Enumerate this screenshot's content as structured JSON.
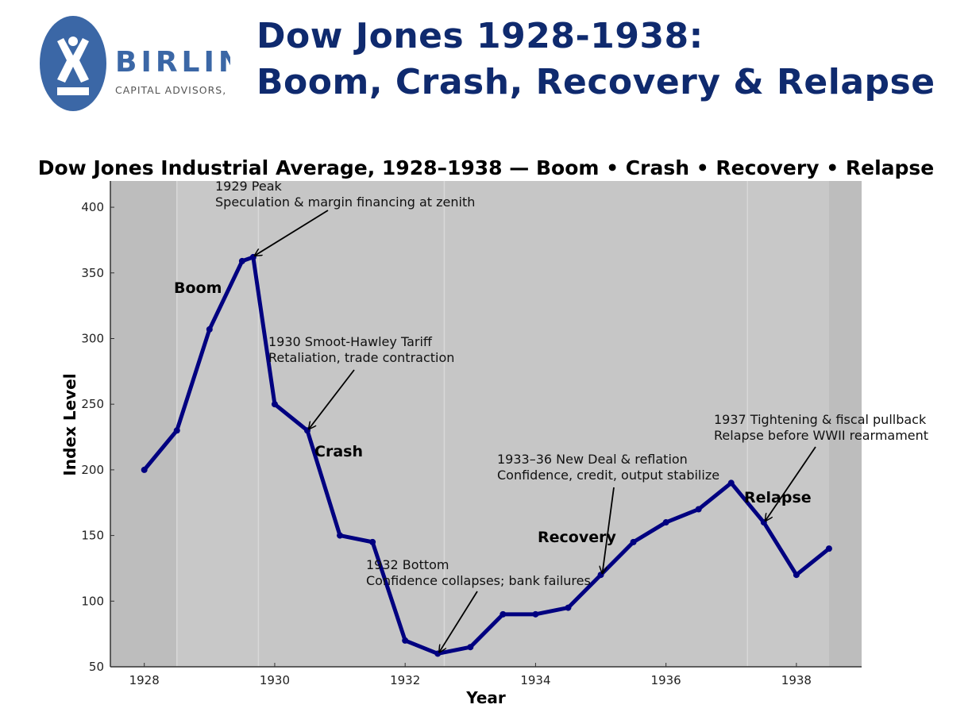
{
  "logo": {
    "name": "BIRLING",
    "subtitle": "CAPITAL ADVISORS, LLC",
    "color": "#3b67a6"
  },
  "headline": {
    "line1": "Dow Jones 1928-1938:",
    "line2": "Boom, Crash, Recovery & Relapse",
    "color": "#0f2a6e"
  },
  "chart_data": {
    "type": "line",
    "title": "Dow Jones Industrial Average, 1928–1938 — Boom • Crash • Recovery • Relapse",
    "xlabel": "Year",
    "ylabel": "Index Level",
    "xlim": [
      1927.48,
      1939.0
    ],
    "ylim": [
      50,
      420
    ],
    "xticks": [
      1928,
      1930,
      1932,
      1934,
      1936,
      1938
    ],
    "yticks": [
      50,
      100,
      150,
      200,
      250,
      300,
      350,
      400
    ],
    "grid": false,
    "line_color": "#000080",
    "x": [
      1928,
      1928.5,
      1929,
      1929.5,
      1929.67,
      1930,
      1930.5,
      1931,
      1931.5,
      1932,
      1932.5,
      1933,
      1933.5,
      1934,
      1934.5,
      1935,
      1935.5,
      1936,
      1936.5,
      1937,
      1937.5,
      1938,
      1938.5
    ],
    "y": [
      200,
      230,
      307,
      359,
      362,
      250,
      230,
      150,
      145,
      70,
      60,
      65,
      90,
      90,
      95,
      120,
      145,
      160,
      170,
      190,
      160,
      120,
      140
    ],
    "phase_bands": [
      {
        "label": "Boom",
        "from": 1928.5,
        "to": 1929.75,
        "color": "#c8c8c8"
      },
      {
        "label": "Crash",
        "from": 1929.75,
        "to": 1932.6,
        "color": "#c6c6c6"
      },
      {
        "label": "Recovery",
        "from": 1932.6,
        "to": 1937.25,
        "color": "#c6c6c6"
      },
      {
        "label": "Relapse",
        "from": 1937.25,
        "to": 1938.5,
        "color": "#c8c8c8"
      }
    ],
    "outside_band_color": "#bdbdbd",
    "annotations": [
      {
        "lines": [
          "1929 Peak",
          "Speculation & margin financing at zenith"
        ],
        "point": [
          1929.67,
          362
        ]
      },
      {
        "lines": [
          "1930 Smoot-Hawley Tariff",
          "Retaliation, trade contraction"
        ],
        "point": [
          1930.5,
          230
        ]
      },
      {
        "lines": [
          "1932 Bottom",
          "Confidence collapses; bank failures"
        ],
        "point": [
          1932.5,
          60
        ]
      },
      {
        "lines": [
          "1933–36 New Deal & reflation",
          "Confidence, credit, output stabilize"
        ],
        "point": [
          1935,
          120
        ]
      },
      {
        "lines": [
          "1937 Tightening & fiscal pullback",
          "Relapse before WWII rearmament"
        ],
        "point": [
          1937.5,
          160
        ]
      }
    ],
    "phase_labels": [
      "Boom",
      "Crash",
      "Recovery",
      "Relapse"
    ]
  }
}
